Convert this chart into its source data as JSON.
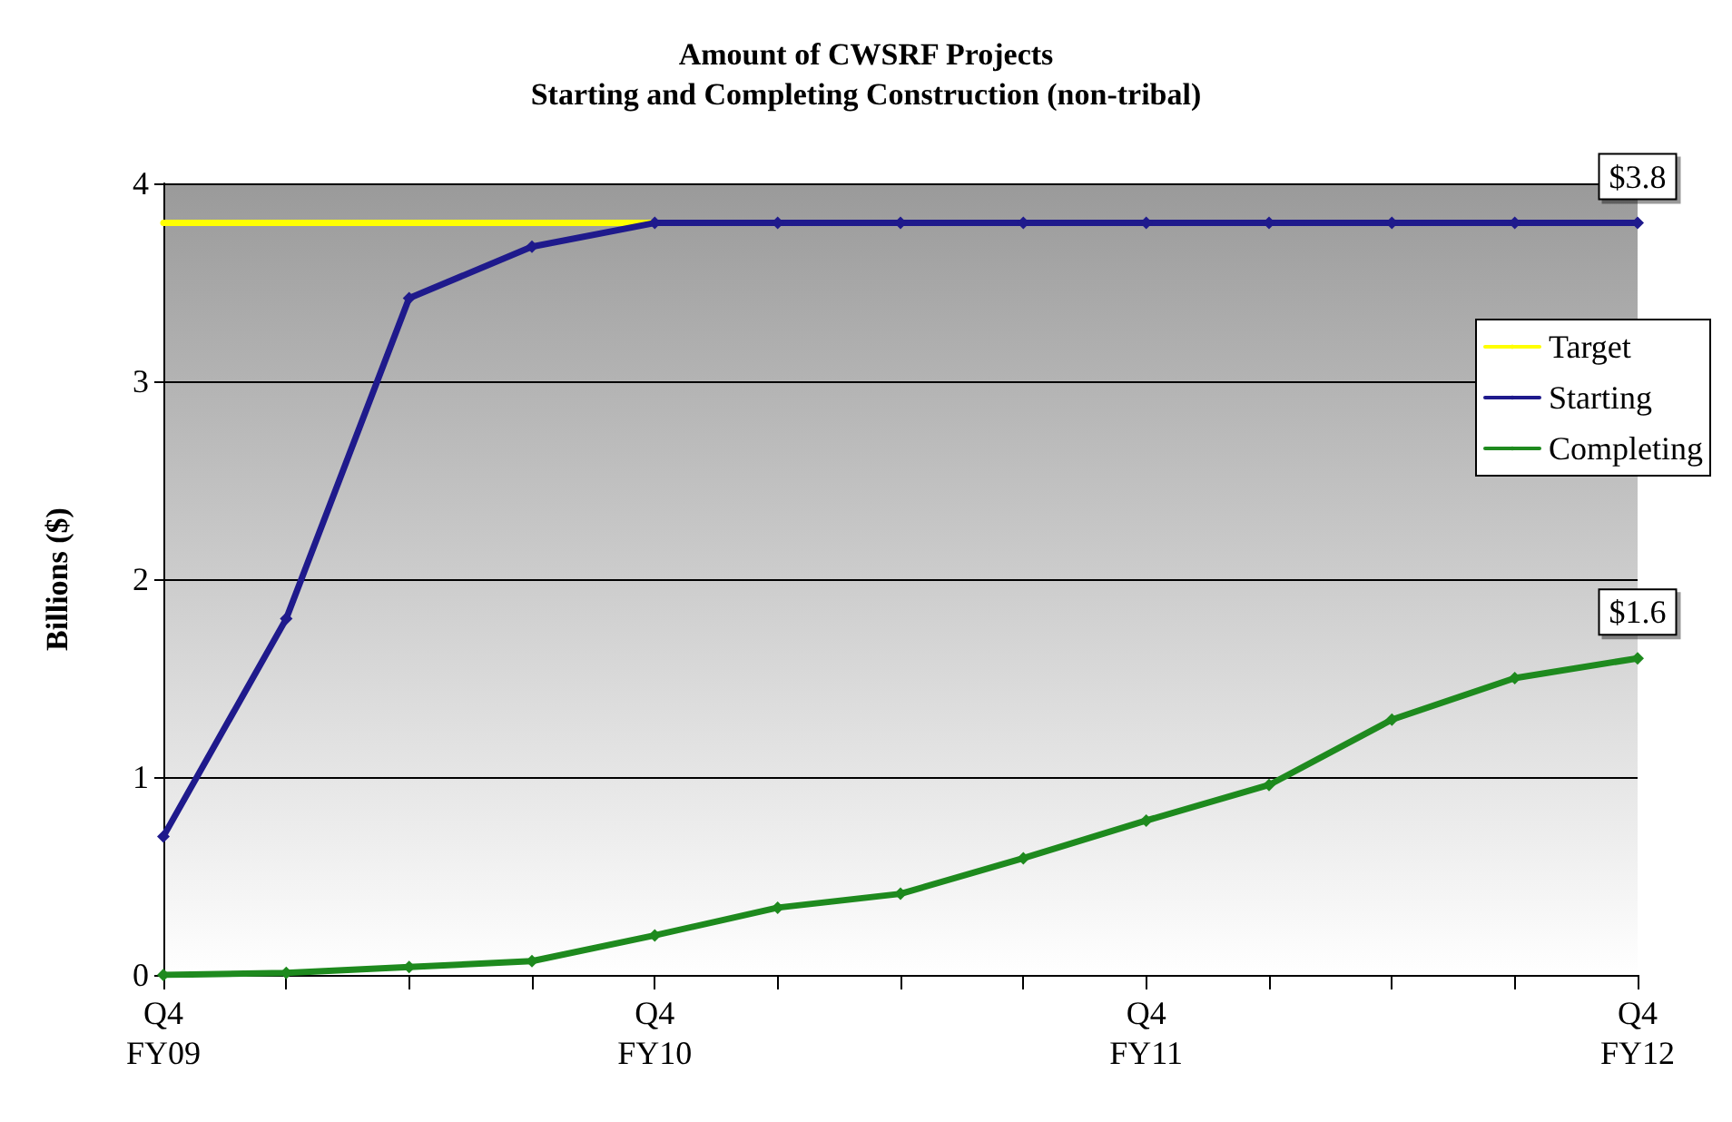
{
  "chart_data": {
    "type": "line",
    "title": "Amount of CWSRF Projects\nStarting and Completing Construction (non-tribal)",
    "ylabel": "Billions ($)",
    "categories": [
      "Q4\nFY09",
      null,
      null,
      null,
      "Q4\nFY10",
      null,
      null,
      null,
      "Q4\nFY11",
      null,
      null,
      null,
      "Q4\nFY12"
    ],
    "series": [
      {
        "name": "Target",
        "color": "#ffff00",
        "marker": "none",
        "values": [
          3.8,
          3.8,
          3.8,
          3.8,
          3.8,
          null,
          null,
          null,
          null,
          null,
          null,
          null,
          null
        ]
      },
      {
        "name": "Starting",
        "color": "#1f1a8c",
        "marker": "diamond",
        "values": [
          0.7,
          1.8,
          3.42,
          3.68,
          3.8,
          3.8,
          3.8,
          3.8,
          3.8,
          3.8,
          3.8,
          3.8,
          3.8
        ],
        "value_labels": [
          null,
          null,
          null,
          null,
          null,
          null,
          null,
          null,
          null,
          null,
          null,
          null,
          "$3.8"
        ]
      },
      {
        "name": "Completing",
        "color": "#1e8a1e",
        "marker": "diamond",
        "values": [
          0,
          0.01,
          0.04,
          0.07,
          0.2,
          0.34,
          0.41,
          0.59,
          0.78,
          0.96,
          1.29,
          1.5,
          1.6
        ],
        "value_labels": [
          null,
          null,
          null,
          null,
          null,
          null,
          null,
          null,
          null,
          null,
          null,
          null,
          "$1.6"
        ]
      }
    ],
    "ylim": [
      0,
      4
    ],
    "yticks": [
      0,
      1,
      2,
      3,
      4
    ],
    "grid": "y",
    "legend": "right",
    "line_style": "solid"
  }
}
